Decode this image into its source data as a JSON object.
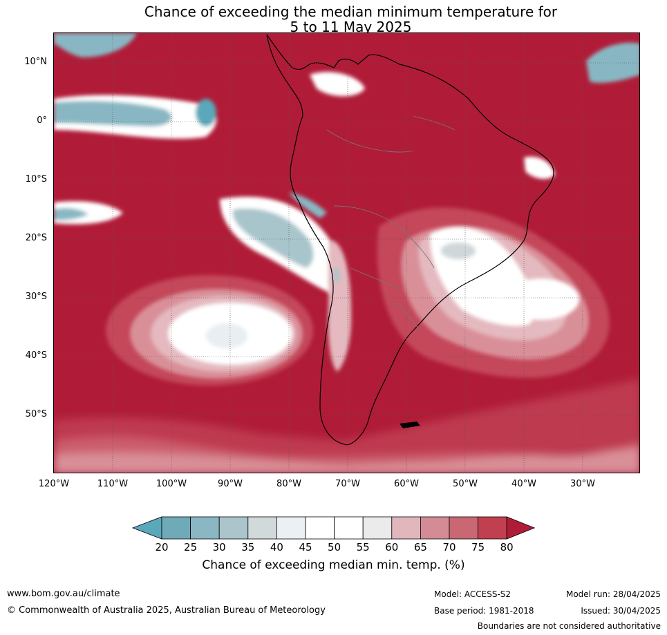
{
  "title": {
    "line1": "Chance of exceeding the median minimum temperature for",
    "line2": "5 to 11 May 2025"
  },
  "map": {
    "lat_labels": [
      "10°N",
      "0°",
      "10°S",
      "20°S",
      "30°S",
      "40°S",
      "50°S"
    ],
    "lon_labels": [
      "120°W",
      "110°W",
      "100°W",
      "90°W",
      "80°W",
      "70°W",
      "60°W",
      "50°W",
      "40°W",
      "30°W"
    ],
    "extent": {
      "lon_min": -120,
      "lon_max": -20,
      "lat_min": -60,
      "lat_max": 15
    },
    "colors": {
      "ocean_high": "#b01c38",
      "above_75": "#c4475a",
      "above_70": "#cf6b78",
      "above_65": "#d98f98",
      "above_60": "#e4b9bf",
      "neutral": "#ffffff",
      "light_grey": "#ebebeb",
      "below_40": "#e8eef1",
      "below_35": "#cfd7da",
      "below_30": "#a9c5cc",
      "below_25": "#88b7c3",
      "below_20": "#5aa8b9"
    }
  },
  "colorbar": {
    "ticks": [
      "20",
      "25",
      "30",
      "35",
      "40",
      "45",
      "50",
      "55",
      "60",
      "65",
      "70",
      "75",
      "80"
    ],
    "colors": [
      "#5aa8b9",
      "#6faab8",
      "#8bb7c4",
      "#aac5cb",
      "#d1d9db",
      "#eaf0f3",
      "#ffffff",
      "#ffffff",
      "#ebebeb",
      "#e2b6bd",
      "#d38b95",
      "#c96873",
      "#c0404f",
      "#b01c38"
    ],
    "label": "Chance of exceeding median min. temp. (%)"
  },
  "footer": {
    "website": "www.bom.gov.au/climate",
    "copyright": "© Commonwealth of Australia 2025, Australian Bureau of Meteorology",
    "model": "Model: ACCESS-S2",
    "base_period": "Base period: 1981-2018",
    "model_run": "Model run: 28/04/2025",
    "issued": "Issued: 30/04/2025",
    "disclaimer": "Boundaries are not considered authoritative"
  }
}
